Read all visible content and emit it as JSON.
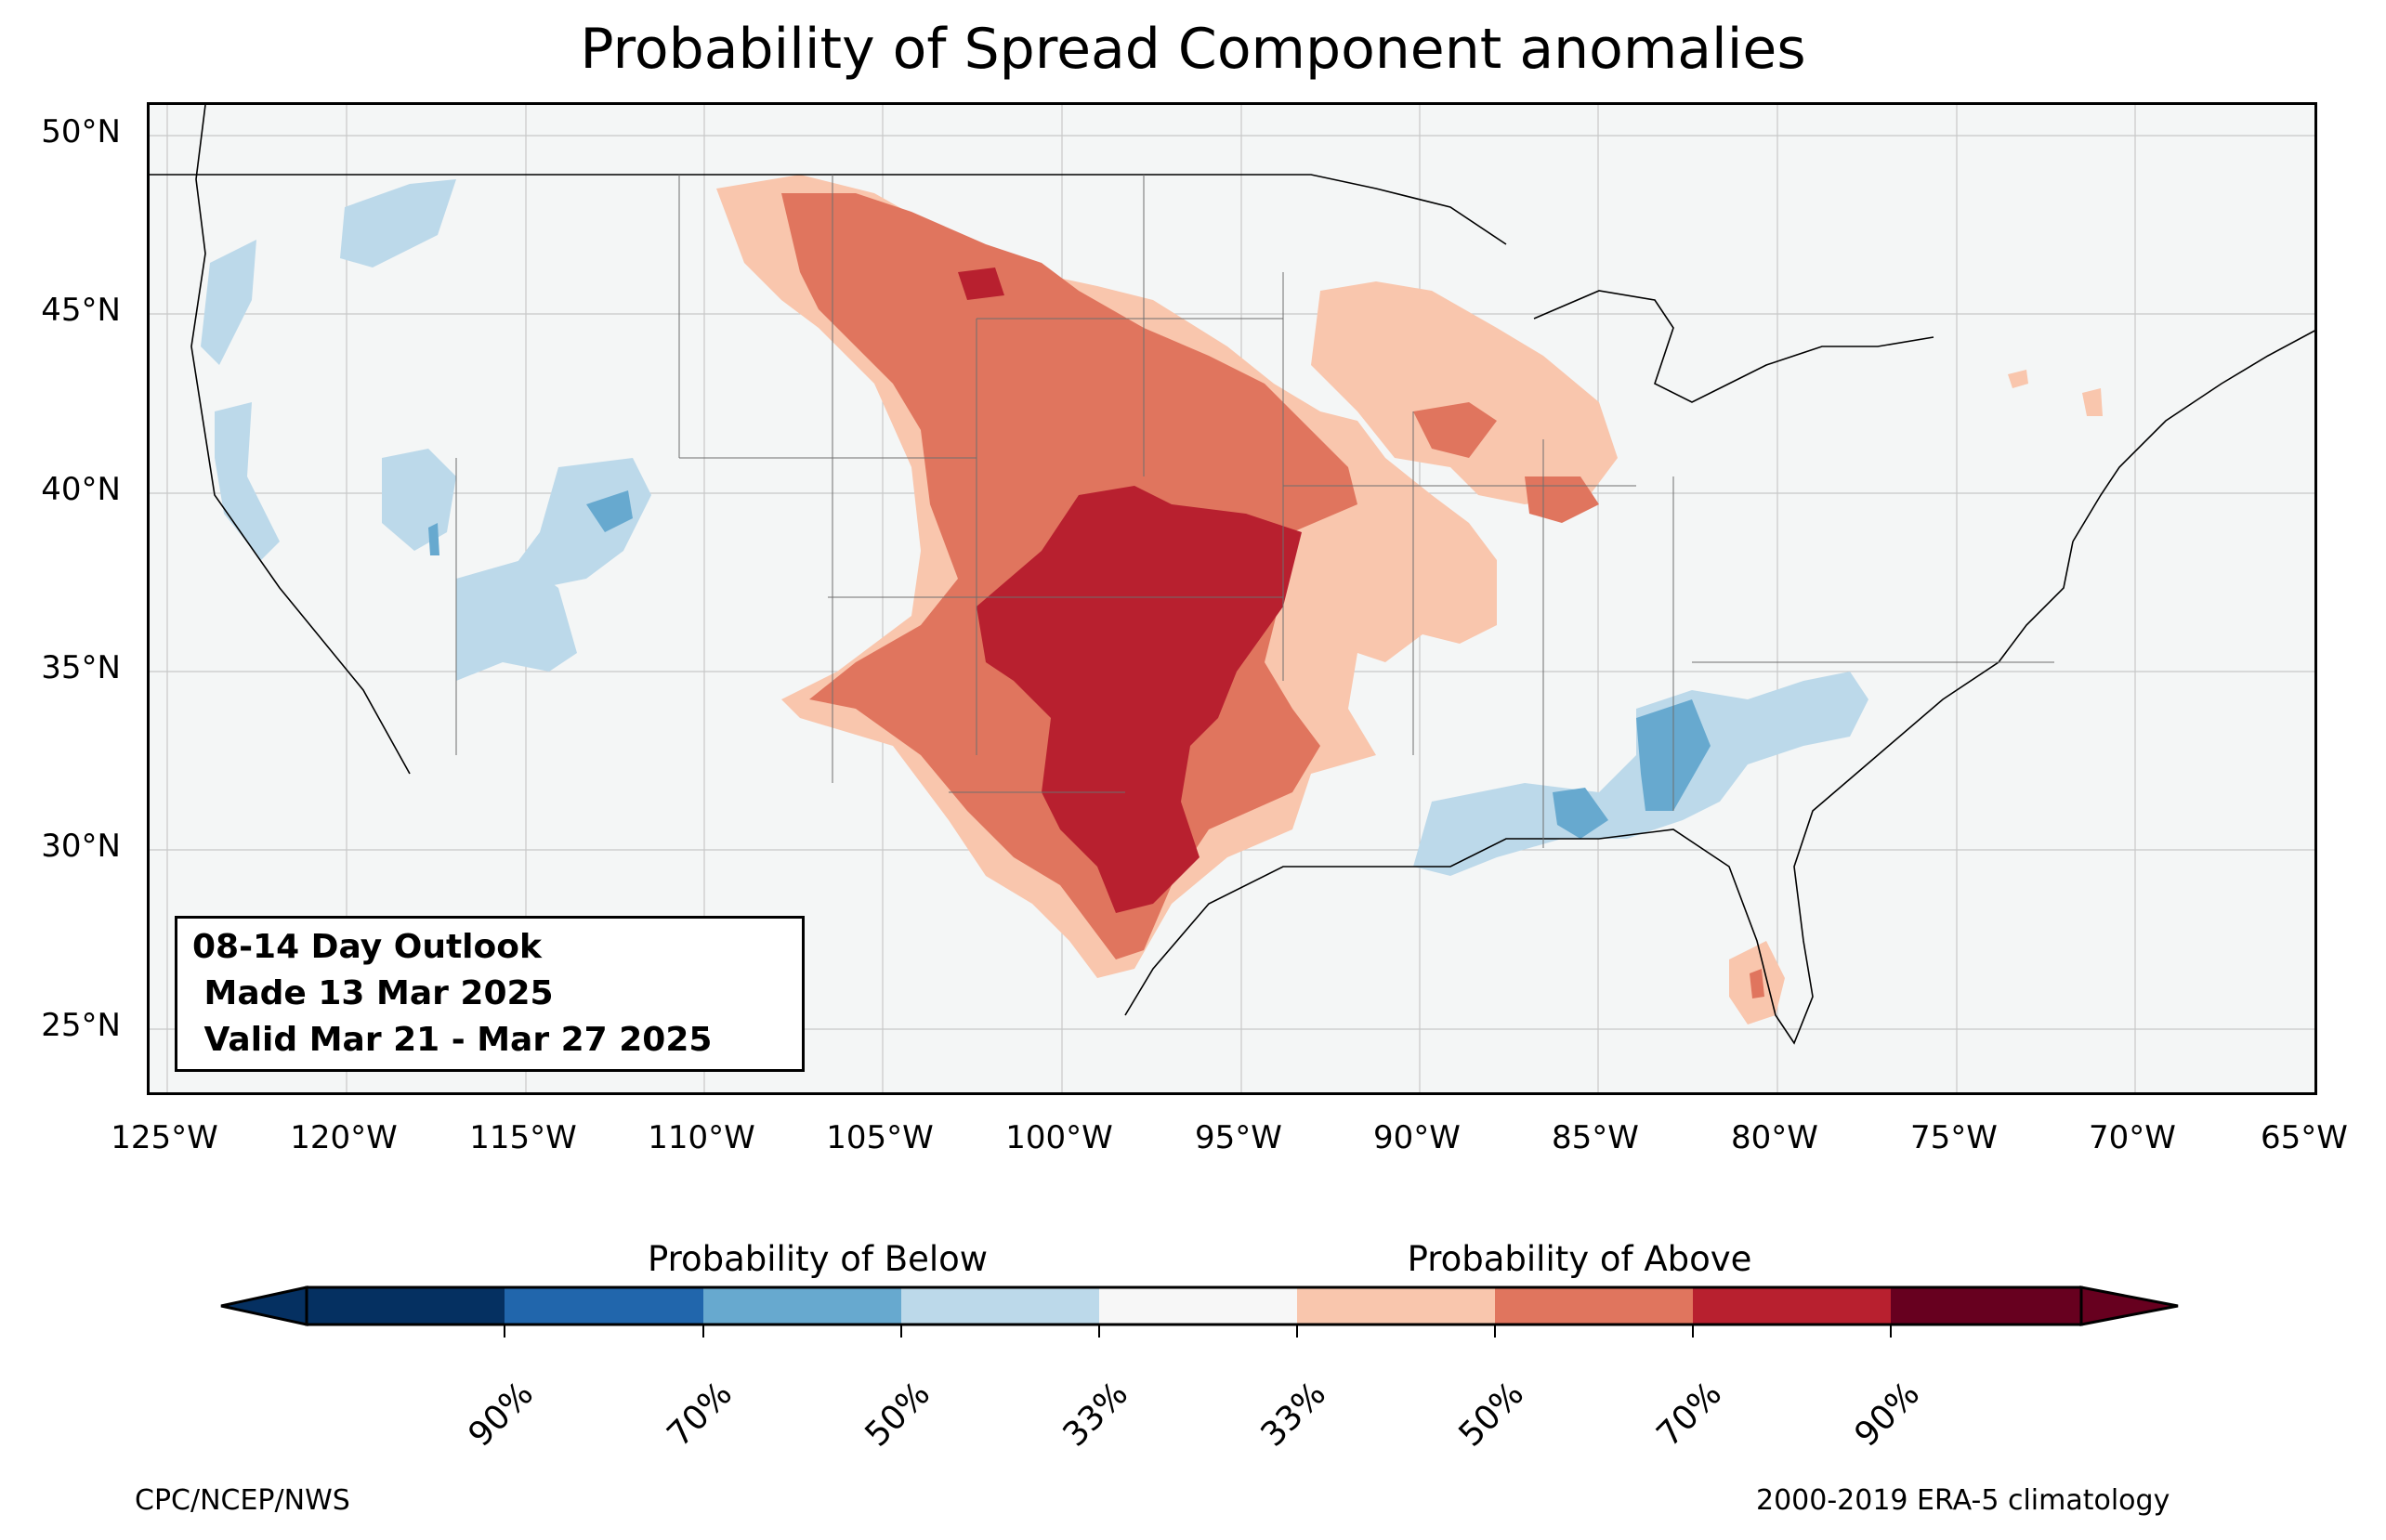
{
  "title": "Probability of Spread Component anomalies",
  "map": {
    "type": "contour-map",
    "region": "CONUS",
    "lon_range": [
      -125,
      -65
    ],
    "lat_range": [
      23,
      51
    ],
    "lat_labels": [
      "50°N",
      "45°N",
      "40°N",
      "35°N",
      "30°N",
      "25°N"
    ],
    "lon_labels": [
      "125°W",
      "120°W",
      "115°W",
      "110°W",
      "105°W",
      "100°W",
      "95°W",
      "90°W",
      "85°W",
      "80°W",
      "75°W",
      "70°W",
      "65°W"
    ],
    "background_color": "#f4f6f6"
  },
  "outlook": {
    "line1": "08-14 Day Outlook",
    "line2": " Made 13 Mar 2025",
    "line3": " Valid Mar 21 - Mar 27 2025"
  },
  "colorbar": {
    "below_label": "Probability of Below",
    "above_label": "Probability of Above",
    "ticks": [
      "90%",
      "70%",
      "50%",
      "33%",
      "33%",
      "50%",
      "70%",
      "90%"
    ],
    "colors": [
      "#053061",
      "#2166ac",
      "#67a9cf",
      "#bcd9ea",
      "#f7f7f7",
      "#f9c6ad",
      "#e0755e",
      "#b8202f",
      "#67001f"
    ]
  },
  "footer": {
    "left": "CPC/NCEP/NWS",
    "right": "2000-2019 ERA-5 climatology"
  }
}
